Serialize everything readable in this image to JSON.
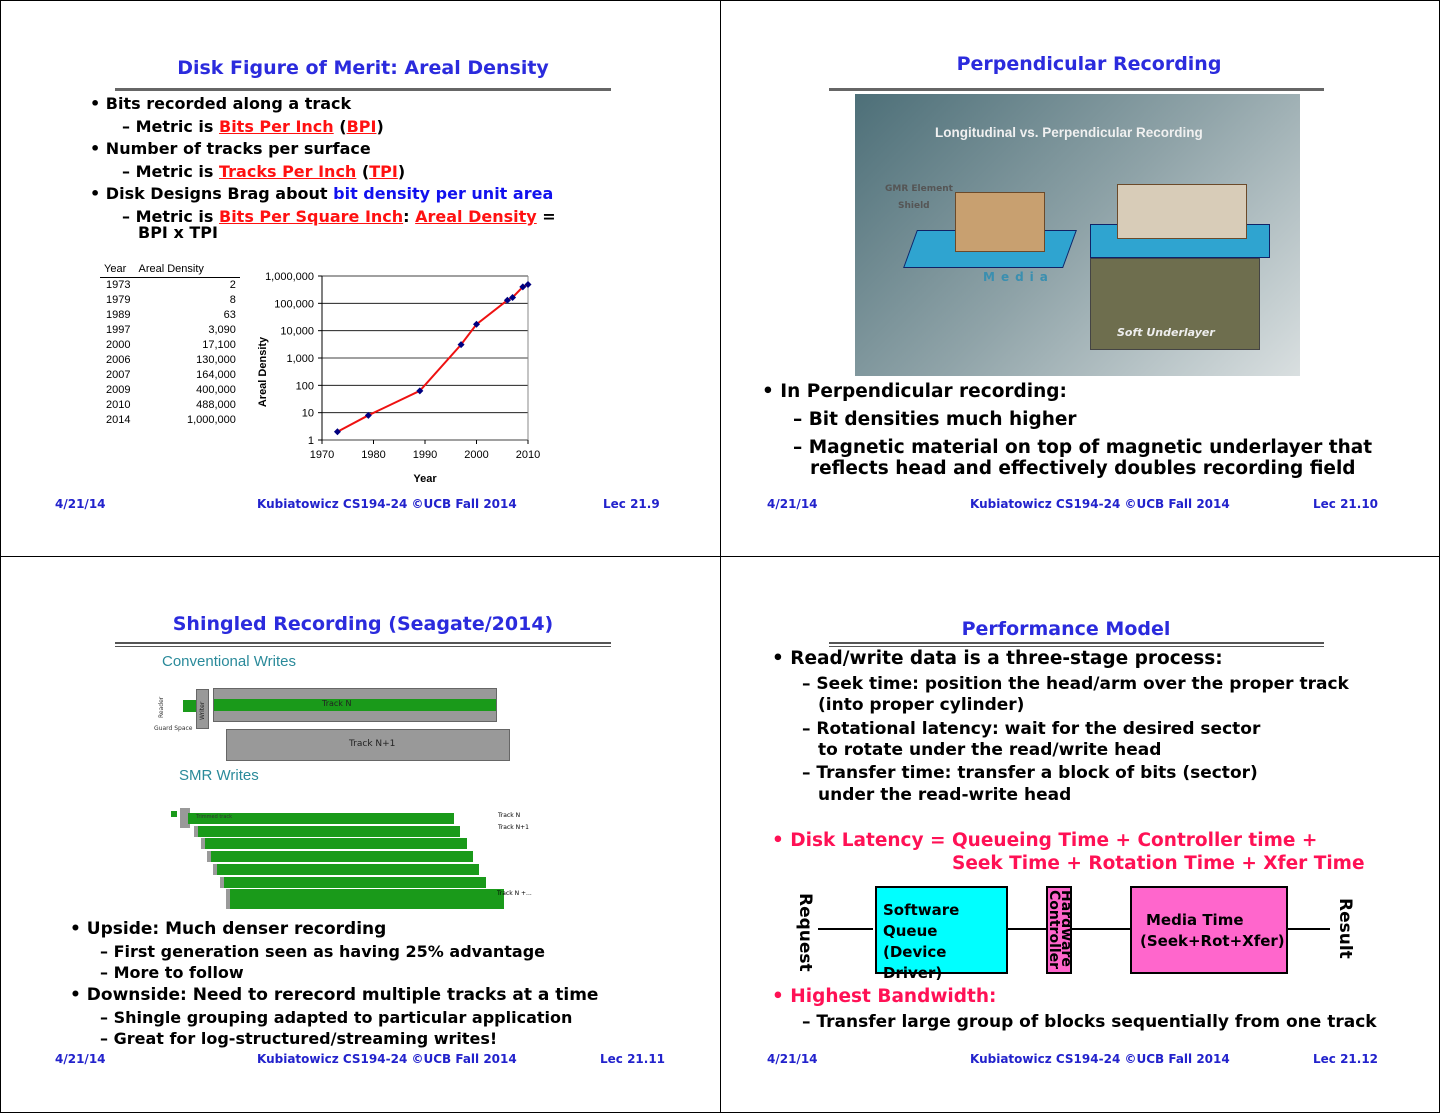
{
  "slides": [
    {
      "title": "Disk Figure of Merit: Areal Density",
      "b1": "Bits recorded along a track",
      "s1": {
        "pre": "– Metric is ",
        "link": "Bits Per Inch",
        "mid": " (",
        "abbr": "BPI",
        "post": ")"
      },
      "b2": "Number of tracks per surface",
      "s2": {
        "pre": "– Metric is ",
        "link": "Tracks Per Inch",
        "mid": " (",
        "abbr": "TPI",
        "post": ")"
      },
      "b3": {
        "pre": "Disk Designs Brag about ",
        "hl": "bit density per unit area"
      },
      "s3": {
        "pre": "– Metric is  ",
        "link": "Bits Per Square Inch",
        "mid": ": ",
        "link2": "Areal Density",
        "post": " =",
        "line2": "BPI x TPI"
      },
      "table": {
        "headers": [
          "Year",
          "Areal Density"
        ],
        "rows": [
          [
            "1973",
            "2"
          ],
          [
            "1979",
            "8"
          ],
          [
            "1989",
            "63"
          ],
          [
            "1997",
            "3,090"
          ],
          [
            "2000",
            "17,100"
          ],
          [
            "2006",
            "130,000"
          ],
          [
            "2007",
            "164,000"
          ],
          [
            "2009",
            "400,000"
          ],
          [
            "2010",
            "488,000"
          ],
          [
            "2014",
            "1,000,000"
          ]
        ]
      },
      "footer": {
        "date": "4/21/14",
        "center": "Kubiatowicz CS194-24 ©UCB Fall 2014",
        "lec": "Lec 21.9"
      }
    },
    {
      "title": "Perpendicular Recording",
      "image": {
        "heading": "Longitudinal vs. Perpendicular Recording",
        "gmr": "GMR Element",
        "shield": "Shield",
        "media": "Media",
        "underlayer": "Soft Underlayer"
      },
      "b1": "In Perpendicular recording:",
      "s1": "– Bit densities much higher",
      "s2a": "– Magnetic material on top of magnetic underlayer that",
      "s2b": "reflects head and effectively doubles recording field",
      "footer": {
        "date": "4/21/14",
        "center": "Kubiatowicz CS194-24 ©UCB Fall 2014",
        "lec": "Lec 21.10"
      }
    },
    {
      "title": "Shingled Recording (Seagate/2014)",
      "image": {
        "conv": "Conventional Writes",
        "reader": "Reader",
        "writer": "Writer",
        "guard": "Guard Space",
        "trackN": "Track N",
        "trackN1": "Track N+1",
        "smr": "SMR Writes",
        "trimmed": "Trimmed track",
        "smrN": "Track N",
        "smrN1": "Track N+1",
        "smrNx": "Track N +..."
      },
      "b1": "Upside: Much denser recording",
      "s1": "– First generation seen as having 25% advantage",
      "s2": "– More to follow",
      "b2": "Downside: Need to rerecord multiple tracks at a time",
      "s3": "– Shingle grouping adapted to particular application",
      "s4": "– Great for log-structured/streaming writes!",
      "footer": {
        "date": "4/21/14",
        "center": "Kubiatowicz CS194-24 ©UCB Fall 2014",
        "lec": "Lec 21.11"
      }
    },
    {
      "title": "Performance Model",
      "b1": "Read/write data is a three-stage process:",
      "s1a": "– Seek time: position the head/arm over the proper track",
      "s1b": "(into proper cylinder)",
      "s2a": "– Rotational latency: wait for the desired sector",
      "s2b": "to rotate under the read/write head",
      "s3a": "– Transfer time: transfer a block of bits (sector)",
      "s3b": "under the read-write head",
      "b2a": "Disk Latency = Queueing Time + Controller time +",
      "b2b": "Seek Time + Rotation Time + Xfer Time",
      "diagram": {
        "request": "Request",
        "sq1": "Software",
        "sq2": "Queue",
        "sq3": "(Device Driver)",
        "hw1": "Hardware",
        "hw2": "Controller",
        "m1": "Media Time",
        "m2": "(Seek+Rot+Xfer)",
        "result": "Result",
        "colors": {
          "queue": "#00ffff",
          "controller": "#ff66cc",
          "media": "#ff66cc"
        }
      },
      "b3": "Highest Bandwidth:",
      "s4": "– Transfer large group of blocks sequentially from one track",
      "footer": {
        "date": "4/21/14",
        "center": "Kubiatowicz CS194-24 ©UCB Fall 2014",
        "lec": "Lec 21.12"
      }
    }
  ],
  "chart_data": {
    "type": "line",
    "xlabel": "Year",
    "ylabel": "Areal Density",
    "xlim": [
      1970,
      2010
    ],
    "ylim": [
      1,
      1000000
    ],
    "yscale": "log",
    "grid": "horizontal",
    "xticks": [
      "1970",
      "1980",
      "1990",
      "2000",
      "2010"
    ],
    "yticks": [
      "1,000,000",
      "100,000",
      "10,000",
      "1,000",
      "100",
      "10",
      "1"
    ],
    "x": [
      1973,
      1979,
      1989,
      1997,
      2000,
      2006,
      2007,
      2009,
      2010
    ],
    "y": [
      2,
      8,
      63,
      3090,
      17100,
      130000,
      164000,
      400000,
      488000
    ],
    "colors": {
      "line": "#ee1111",
      "marker": "#000080"
    }
  }
}
